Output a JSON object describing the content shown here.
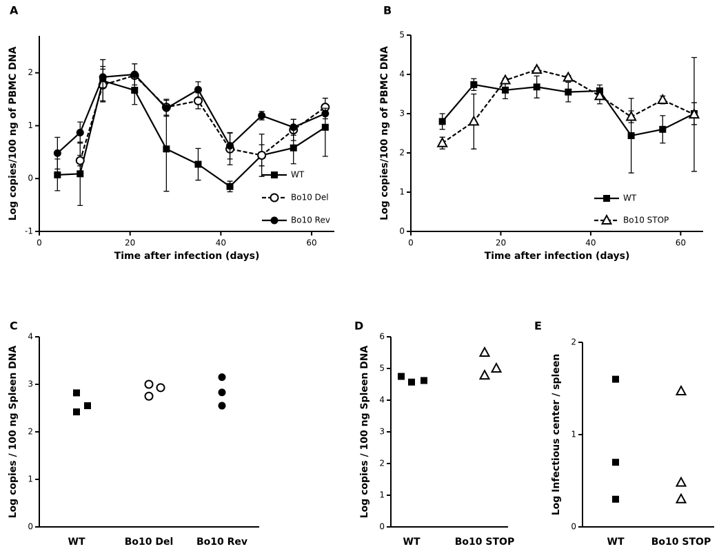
{
  "chart_data": [
    {
      "type": "line",
      "label": "A",
      "x_label": "Time after infection (days)",
      "y_label": "Log copies/100 ng of PBMC DNA",
      "xlim": [
        0,
        65
      ],
      "xticks": [
        0,
        20,
        40,
        60
      ],
      "ylim": [
        -1,
        2.7
      ],
      "yticks": [
        -1,
        0,
        1,
        2
      ],
      "legend": "lower right",
      "series": [
        {
          "name": "WT",
          "color": "#000000",
          "marker": "square",
          "dash": false,
          "x": [
            4,
            9,
            14,
            21,
            28,
            35,
            42,
            49,
            56,
            63
          ],
          "values": [
            0.07,
            0.09,
            1.85,
            1.67,
            0.56,
            0.27,
            -0.15,
            0.44,
            0.58,
            0.97
          ],
          "errors": [
            0.3,
            0.6,
            0.4,
            0.27,
            0.8,
            0.3,
            0.1,
            0.4,
            0.3,
            0.55
          ]
        },
        {
          "name": "Bo10 Del",
          "color": "#000000",
          "marker": "circle-open",
          "dash": true,
          "x": [
            9,
            14,
            21,
            28,
            35,
            42,
            49,
            56,
            63
          ],
          "values": [
            0.34,
            1.77,
            1.95,
            1.35,
            1.47,
            0.56,
            0.44,
            0.92,
            1.35
          ],
          "errors": [
            0.1,
            0.3,
            0.05,
            0.15,
            0.15,
            0.3,
            0.2,
            0.2,
            0.05
          ]
        },
        {
          "name": "Bo10 Rev",
          "color": "#000000",
          "marker": "circle",
          "dash": false,
          "x": [
            4,
            9,
            14,
            21,
            28,
            35,
            42,
            49,
            56,
            63
          ],
          "values": [
            0.48,
            0.87,
            1.92,
            1.97,
            1.33,
            1.68,
            0.62,
            1.19,
            0.97,
            1.23
          ],
          "errors": [
            0.3,
            0.2,
            0.2,
            0.2,
            0.15,
            0.15,
            0.25,
            0.08,
            0.15,
            0.1
          ]
        }
      ]
    },
    {
      "type": "line",
      "label": "B",
      "x_label": "Time after infection (days)",
      "y_label": "Log copies/100 ng of PBMC DNA",
      "xlim": [
        0,
        65
      ],
      "xticks": [
        0,
        20,
        40,
        60
      ],
      "ylim": [
        0,
        5
      ],
      "yticks": [
        0,
        1,
        2,
        3,
        4,
        5
      ],
      "legend": "lower right",
      "series": [
        {
          "name": "WT",
          "color": "#000000",
          "marker": "square",
          "dash": false,
          "x": [
            7,
            14,
            21,
            28,
            35,
            42,
            49,
            56,
            63
          ],
          "values": [
            2.8,
            3.74,
            3.6,
            3.68,
            3.55,
            3.58,
            2.44,
            2.6,
            3.0
          ],
          "errors": [
            0.2,
            0.15,
            0.22,
            0.28,
            0.25,
            0.15,
            0.95,
            0.35,
            0.28
          ]
        },
        {
          "name": "Bo10 STOP",
          "color": "#000000",
          "marker": "triangle-open",
          "dash": true,
          "x": [
            7,
            14,
            21,
            28,
            35,
            42,
            49,
            56,
            63
          ],
          "values": [
            2.25,
            2.8,
            3.85,
            4.12,
            3.92,
            3.45,
            2.92,
            3.35,
            2.98
          ],
          "errors": [
            0.15,
            0.7,
            0.05,
            0.05,
            0.05,
            0.2,
            0.15,
            0.1,
            1.45
          ]
        }
      ]
    },
    {
      "type": "strip",
      "label": "C",
      "y_label": "Log copies / 100 ng Spleen DNA",
      "ylim": [
        0,
        4
      ],
      "yticks": [
        0,
        1,
        2,
        3,
        4
      ],
      "categories": [
        "WT",
        "Bo10 Del",
        "Bo10 Rev"
      ],
      "markers": [
        "square",
        "circle-open",
        "circle"
      ],
      "color": "#000000",
      "values": [
        [
          2.82,
          2.42,
          2.55
        ],
        [
          3.0,
          2.75,
          2.93
        ],
        [
          3.15,
          2.83,
          2.55
        ]
      ]
    },
    {
      "type": "strip",
      "label": "D",
      "y_label": "Log copies / 100 ng Spleen DNA",
      "ylim": [
        0,
        6
      ],
      "yticks": [
        0,
        1,
        2,
        3,
        4,
        5,
        6
      ],
      "categories": [
        "WT",
        "Bo10 STOP"
      ],
      "markers": [
        "square",
        "triangle-open"
      ],
      "color": "#000000",
      "values": [
        [
          4.75,
          4.57,
          4.62
        ],
        [
          5.5,
          4.78,
          5.0
        ]
      ]
    },
    {
      "type": "strip",
      "label": "E",
      "y_label": "Log Infectious center / spleen",
      "ylim": [
        0,
        2
      ],
      "yticks": [
        0,
        1,
        2
      ],
      "categories": [
        "WT",
        "Bo10 STOP"
      ],
      "markers": [
        "square",
        "triangle-open"
      ],
      "color": "#000000",
      "values": [
        [
          1.6,
          0.7,
          0.3
        ],
        [
          1.47,
          0.48,
          0.3
        ]
      ]
    }
  ]
}
